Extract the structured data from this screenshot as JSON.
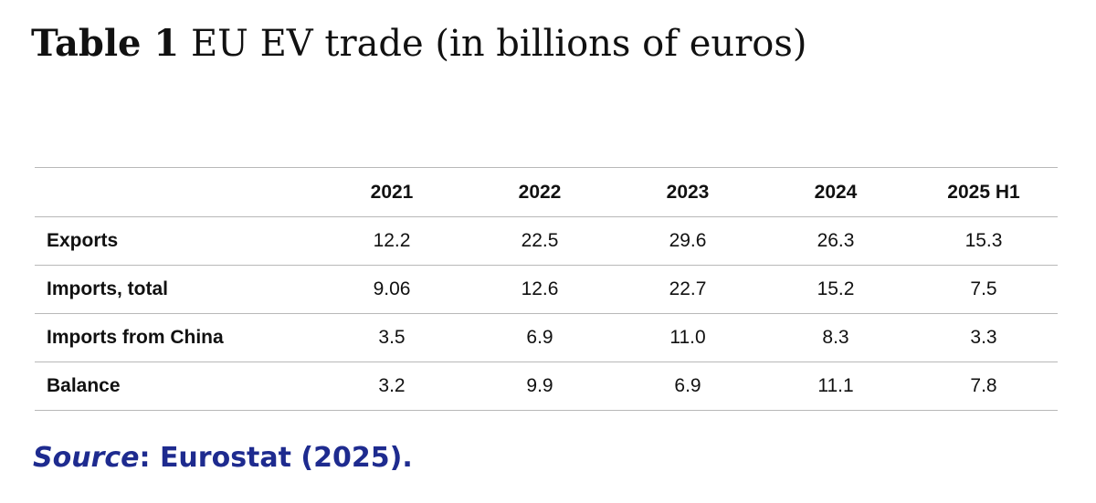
{
  "title": {
    "label": "Table 1",
    "text": "EU EV trade (in billions of euros)"
  },
  "table": {
    "columns": [
      "2021",
      "2022",
      "2023",
      "2024",
      "2025 H1"
    ],
    "rows": [
      {
        "label": "Exports",
        "values": [
          "12.2",
          "22.5",
          "29.6",
          "26.3",
          "15.3"
        ]
      },
      {
        "label": "Imports, total",
        "values": [
          "9.06",
          "12.6",
          "22.7",
          "15.2",
          "7.5"
        ]
      },
      {
        "label": "Imports from China",
        "values": [
          "3.5",
          "6.9",
          "11.0",
          "8.3",
          "3.3"
        ]
      },
      {
        "label": "Balance",
        "values": [
          "3.2",
          "9.9",
          "6.9",
          "11.1",
          "7.8"
        ]
      }
    ]
  },
  "source": {
    "label": "Source",
    "text": ": Eurostat (2025)."
  },
  "colors": {
    "text": "#111111",
    "source": "#1e2b8f",
    "rule": "#b8b8b8"
  }
}
